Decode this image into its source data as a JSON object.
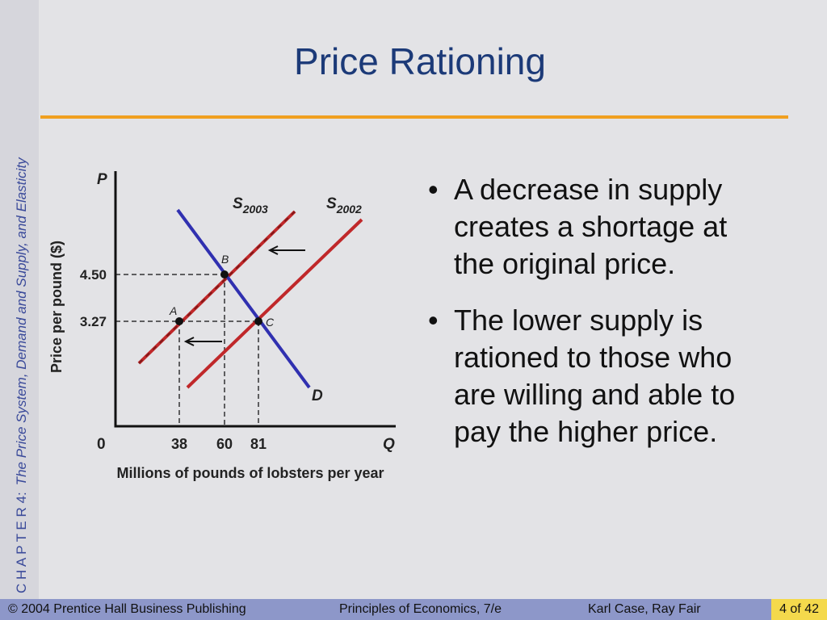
{
  "sidebar": {
    "chapter": "C H A P T E R  4:",
    "chapter_title": "The Price System, Demand and Supply, and Elasticity"
  },
  "title": "Price Rationing",
  "graph": {
    "y_axis_symbol": "P",
    "x_axis_symbol": "Q",
    "origin": "0",
    "y_label": "Price per pound ($)",
    "x_label": "Millions of pounds of lobsters per year",
    "price_labels": [
      "4.50",
      "3.27"
    ],
    "quantity_labels": [
      "38",
      "60",
      "81"
    ],
    "points": [
      "A",
      "B",
      "C"
    ],
    "curves": [
      {
        "name": "S",
        "subscript": "2003"
      },
      {
        "name": "S",
        "subscript": "2002"
      },
      {
        "name": "D"
      }
    ]
  },
  "bullets": [
    "A decrease in supply creates a shortage at the original price.",
    "The lower supply is rationed to those who are willing and able to pay the higher price."
  ],
  "footer": {
    "publisher": "© 2004 Prentice Hall Business Publishing",
    "book": "Principles of Economics, 7/e",
    "authors": "Karl Case, Ray Fair",
    "page": "4 of 42"
  }
}
